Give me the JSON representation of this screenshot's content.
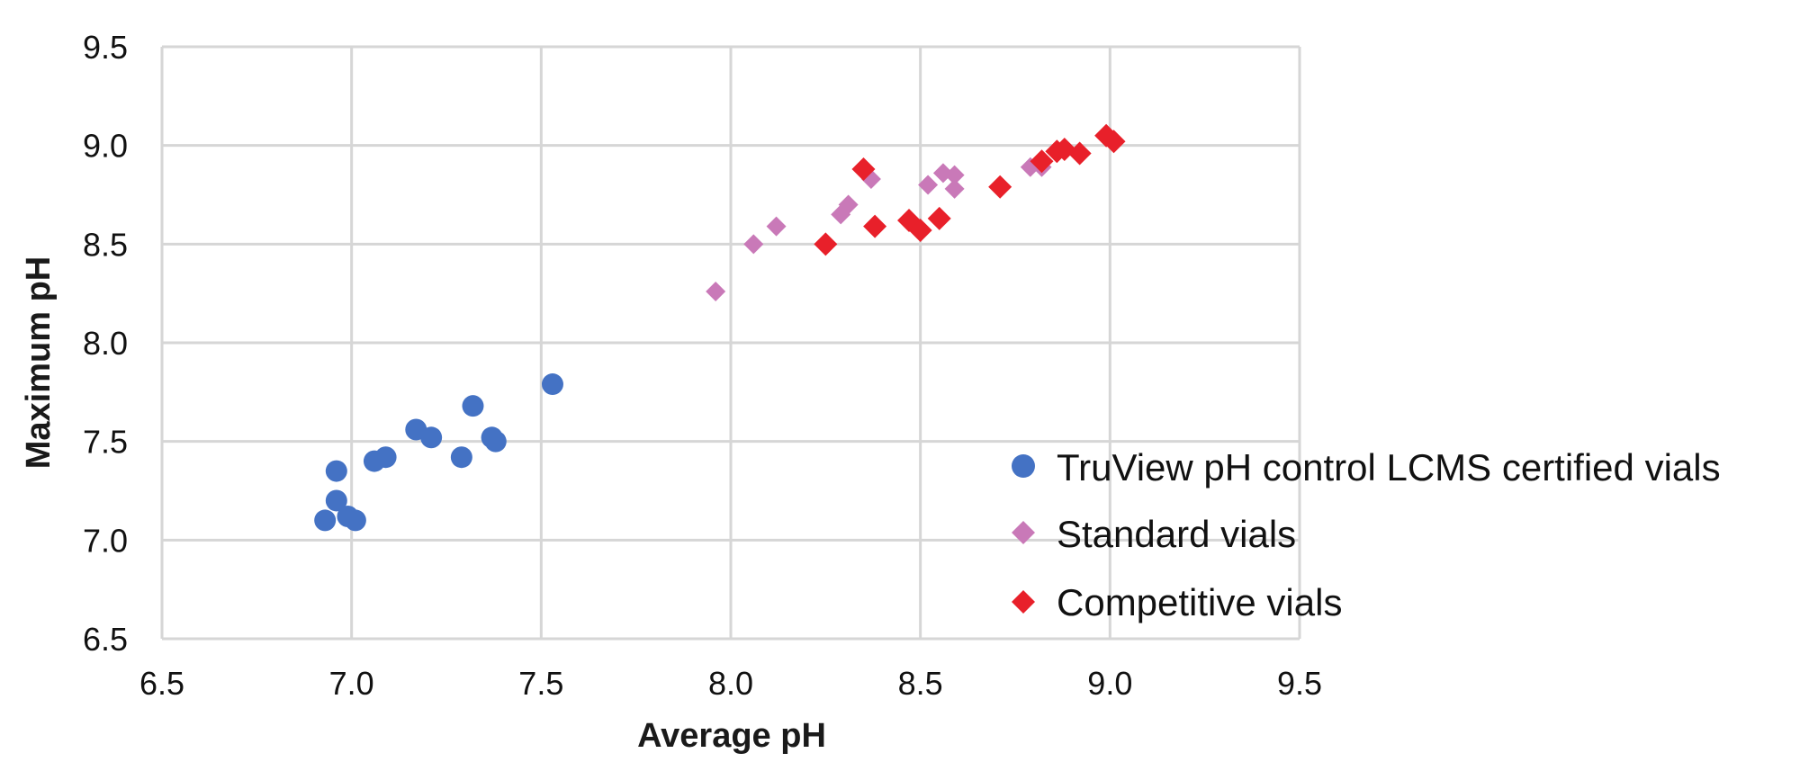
{
  "chart_data": {
    "type": "scatter",
    "title": "",
    "xlabel": "Average pH",
    "ylabel": "Maximum pH",
    "xlim": [
      6.5,
      9.5
    ],
    "ylim": [
      6.5,
      9.5
    ],
    "x_ticks": [
      "6.5",
      "7.0",
      "7.5",
      "8.0",
      "8.5",
      "9.0",
      "9.5"
    ],
    "y_ticks": [
      "6.5",
      "7.0",
      "7.5",
      "8.0",
      "8.5",
      "9.0",
      "9.5"
    ],
    "grid": true,
    "legend_position": "right",
    "series": [
      {
        "name": "TruView pH control LCMS certified vials",
        "marker": "circle",
        "color": "#4472C4",
        "points": [
          [
            6.93,
            7.1
          ],
          [
            6.96,
            7.35
          ],
          [
            6.96,
            7.2
          ],
          [
            6.99,
            7.12
          ],
          [
            7.01,
            7.1
          ],
          [
            7.06,
            7.4
          ],
          [
            7.09,
            7.42
          ],
          [
            7.17,
            7.56
          ],
          [
            7.21,
            7.52
          ],
          [
            7.29,
            7.42
          ],
          [
            7.32,
            7.68
          ],
          [
            7.37,
            7.52
          ],
          [
            7.38,
            7.5
          ],
          [
            7.53,
            7.79
          ]
        ]
      },
      {
        "name": "Standard vials",
        "marker": "diamond",
        "color": "#C979B8",
        "points": [
          [
            7.96,
            8.26
          ],
          [
            8.06,
            8.5
          ],
          [
            8.12,
            8.59
          ],
          [
            8.29,
            8.65
          ],
          [
            8.31,
            8.7
          ],
          [
            8.37,
            8.83
          ],
          [
            8.52,
            8.8
          ],
          [
            8.56,
            8.86
          ],
          [
            8.59,
            8.85
          ],
          [
            8.59,
            8.78
          ],
          [
            8.79,
            8.89
          ],
          [
            8.82,
            8.89
          ]
        ]
      },
      {
        "name": "Competitive vials",
        "marker": "diamond",
        "color": "#E8202A",
        "points": [
          [
            8.25,
            8.5
          ],
          [
            8.35,
            8.88
          ],
          [
            8.38,
            8.59
          ],
          [
            8.47,
            8.62
          ],
          [
            8.5,
            8.57
          ],
          [
            8.55,
            8.63
          ],
          [
            8.71,
            8.79
          ],
          [
            8.82,
            8.92
          ],
          [
            8.86,
            8.97
          ],
          [
            8.88,
            8.98
          ],
          [
            8.92,
            8.96
          ],
          [
            8.99,
            9.05
          ],
          [
            9.01,
            9.02
          ]
        ]
      }
    ]
  }
}
